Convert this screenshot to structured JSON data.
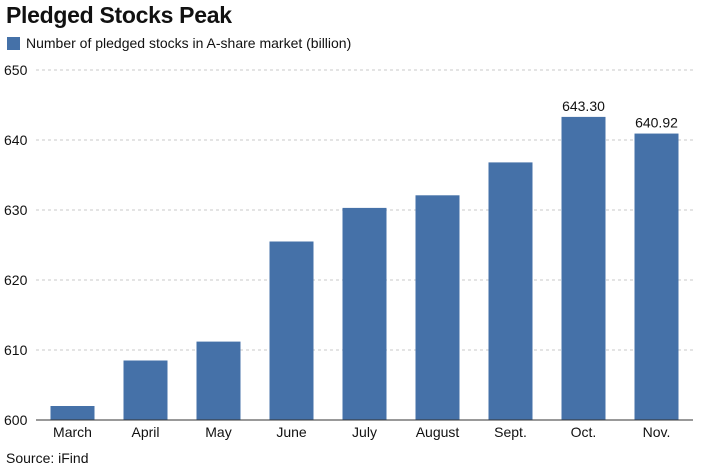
{
  "chart_data": {
    "type": "bar",
    "title": "Pledged Stocks Peak",
    "legend": {
      "position": "top-left",
      "entries": [
        "Number of pledged stocks in A-share market (billion)"
      ]
    },
    "categories": [
      "March",
      "April",
      "May",
      "June",
      "July",
      "August",
      "Sept.",
      "Oct.",
      "Nov."
    ],
    "series": [
      {
        "name": "Number of pledged stocks in A-share market (billion)",
        "values": [
          602.0,
          608.5,
          611.2,
          625.5,
          630.3,
          632.1,
          636.8,
          643.3,
          640.92
        ],
        "color": "#4571a8"
      }
    ],
    "data_labels": [
      {
        "category": "Oct.",
        "text": "643.30"
      },
      {
        "category": "Nov.",
        "text": "640.92"
      }
    ],
    "ylim": [
      600,
      650
    ],
    "yticks": [
      600,
      610,
      620,
      630,
      640,
      650
    ],
    "grid": true,
    "xlabel": "",
    "ylabel": ""
  },
  "source": "Source: iFind"
}
